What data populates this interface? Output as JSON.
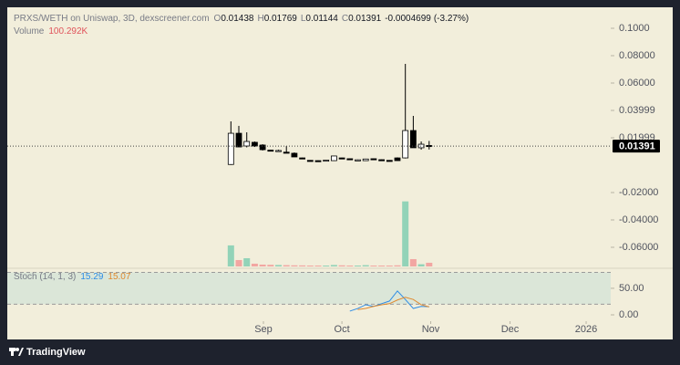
{
  "chart_data": [
    {
      "type": "candlestick",
      "title": "PRXS/WETH on Uniswap, 3D, dexscreener.com",
      "ohlc_labels": [
        "O",
        "H",
        "L",
        "C"
      ],
      "change": -0.0004699,
      "change_pct": {
        "value": -3.27,
        "label": "(-3.27%)"
      },
      "x": [
        0,
        1,
        2,
        3,
        4,
        5,
        6,
        7,
        8,
        9,
        10,
        11,
        12,
        13,
        14,
        15,
        16,
        17,
        18,
        19,
        20,
        21,
        22,
        23,
        24,
        25
      ],
      "open": [
        0.0005,
        0.0233,
        0.014,
        0.0167,
        0.0147,
        0.011,
        0.0105,
        0.0095,
        0.0087,
        0.0053,
        0.0035,
        0.0033,
        0.0035,
        0.0033,
        0.0053,
        0.0047,
        0.0037,
        0.0033,
        0.0047,
        0.004,
        0.0035,
        0.0053,
        0.0053,
        0.0253,
        0.0127,
        0.01438
      ],
      "high": [
        0.032,
        0.0287,
        0.024,
        0.0173,
        0.0153,
        0.0113,
        0.0113,
        0.014,
        0.0093,
        0.0055,
        0.0037,
        0.0035,
        0.0038,
        0.0069,
        0.0055,
        0.0049,
        0.0041,
        0.0047,
        0.0049,
        0.0042,
        0.0037,
        0.0057,
        0.074,
        0.036,
        0.0173,
        0.01769
      ],
      "low": [
        0.0002,
        0.0133,
        0.013,
        0.0133,
        0.0107,
        0.0103,
        0.0103,
        0.0091,
        0.006,
        0.0045,
        0.0031,
        0.0031,
        0.0033,
        0.0031,
        0.0049,
        0.0043,
        0.0035,
        0.0031,
        0.0043,
        0.0036,
        0.0031,
        0.0031,
        0.0049,
        0.0127,
        0.0113,
        0.01144
      ],
      "close": [
        0.0233,
        0.0133,
        0.0173,
        0.014,
        0.0113,
        0.0107,
        0.0107,
        0.0093,
        0.006,
        0.0047,
        0.0033,
        0.0032,
        0.0037,
        0.0067,
        0.0051,
        0.0045,
        0.0039,
        0.0045,
        0.0045,
        0.0038,
        0.0033,
        0.0033,
        0.0253,
        0.0127,
        0.0153,
        0.01391
      ],
      "up_color": "#ffffff",
      "down_color": "#000000",
      "volume": {
        "name": "Volume",
        "values": [
          573000,
          174000,
          224000,
          75000,
          50000,
          45000,
          40000,
          35000,
          30000,
          28000,
          25000,
          25000,
          22000,
          40000,
          30000,
          25000,
          22000,
          35000,
          25000,
          20000,
          18000,
          30000,
          1770000,
          199000,
          60000,
          100292
        ],
        "value_labels": [
          null,
          null,
          null,
          null,
          null,
          null,
          null,
          null,
          null,
          null,
          null,
          null,
          null,
          null,
          null,
          null,
          null,
          null,
          null,
          null,
          null,
          null,
          null,
          null,
          null,
          "100.292K"
        ],
        "ylim": [
          0,
          7000000
        ],
        "up_color": "#92d3b8",
        "down_color": "#f2a6a2",
        "label_color": "#e0525a"
      },
      "xlim": [
        -28.2,
        47.9
      ],
      "xticks": [
        {
          "value": 4.1,
          "label": "Sep"
        },
        {
          "value": 14,
          "label": "Oct"
        },
        {
          "value": 25.2,
          "label": "Nov"
        },
        {
          "value": 35.2,
          "label": "Dec"
        },
        {
          "value": 44.8,
          "label": "2026"
        }
      ],
      "ylim": [
        -0.074,
        0.114
      ],
      "yticks": [
        {
          "value": 0.1,
          "label": "0.1000"
        },
        {
          "value": 0.08,
          "label": "0.08000"
        },
        {
          "value": 0.06,
          "label": "0.06000"
        },
        {
          "value": 0.04,
          "label": "0.03999"
        },
        {
          "value": 0.02,
          "label": "0.01999"
        },
        {
          "value": -0.02,
          "label": "-0.02000"
        },
        {
          "value": -0.04,
          "label": "-0.04000"
        },
        {
          "value": -0.06,
          "label": "-0.06000"
        }
      ],
      "last_price_line": true
    },
    {
      "type": "line",
      "title": "Stoch (14, 1, 3)",
      "x": [
        0,
        1,
        2,
        3,
        4,
        5,
        6,
        7,
        8,
        9,
        10,
        11,
        12,
        13,
        14,
        15,
        16,
        17,
        18,
        19,
        20,
        21,
        22,
        23,
        24,
        25
      ],
      "series": [
        {
          "color": "#2e8de6",
          "values": [
            null,
            null,
            null,
            null,
            null,
            null,
            null,
            null,
            null,
            null,
            null,
            null,
            null,
            null,
            null,
            7,
            12,
            19,
            16,
            21,
            26,
            45,
            29,
            12,
            16,
            15.29
          ]
        },
        {
          "color": "#e0892e",
          "values": [
            null,
            null,
            null,
            null,
            null,
            null,
            null,
            null,
            null,
            null,
            null,
            null,
            null,
            null,
            null,
            null,
            10,
            12,
            16,
            19,
            21,
            28,
            33,
            29,
            19,
            15.07
          ]
        }
      ],
      "ylim": [
        -12,
        86
      ],
      "yticks": [
        {
          "value": 50,
          "label": "50.00"
        },
        {
          "value": 0,
          "label": "0.00"
        }
      ],
      "bands": [
        20,
        80
      ],
      "band_color": "#dbe6d8"
    }
  ],
  "brand": "TradingView"
}
